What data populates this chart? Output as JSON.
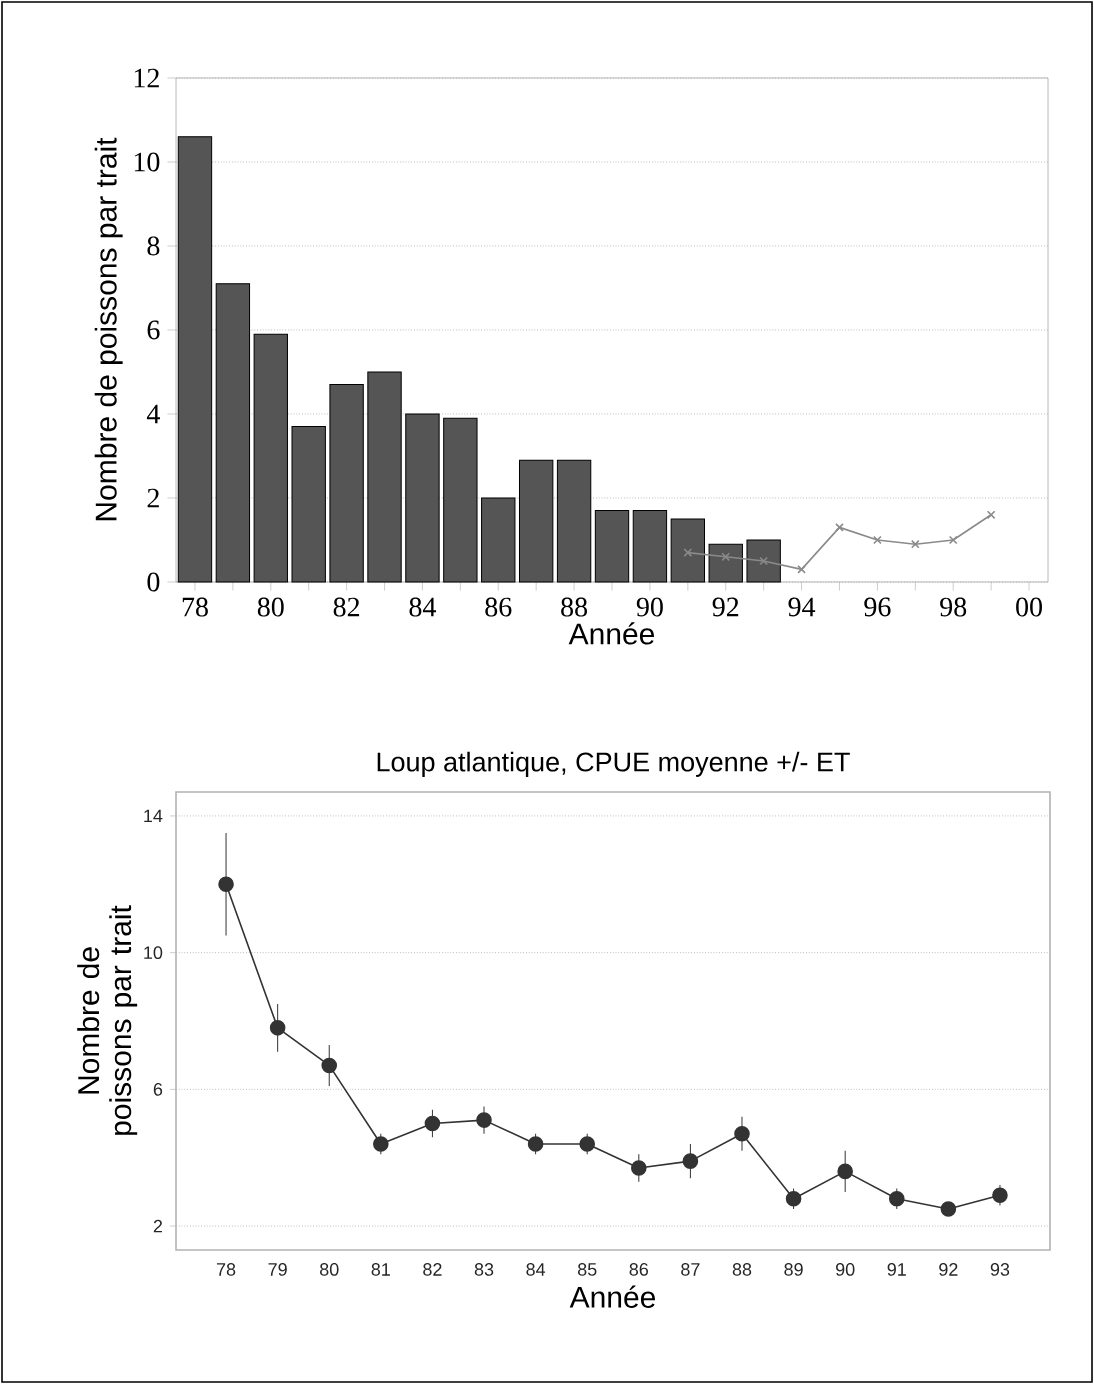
{
  "chart_data": [
    {
      "type": "bar",
      "xlabel": "Année",
      "ylabel": "Nombre de poissons par trait",
      "xlim": [
        1977.5,
        2000.5
      ],
      "ylim": [
        0,
        12
      ],
      "yticks": [
        0,
        2,
        4,
        6,
        8,
        10,
        12
      ],
      "grid": "y",
      "xticks": [
        {
          "value": 1978,
          "label": "78"
        },
        {
          "value": 1979,
          "label": null
        },
        {
          "value": 1980,
          "label": "80"
        },
        {
          "value": 1981,
          "label": null
        },
        {
          "value": 1982,
          "label": "82"
        },
        {
          "value": 1983,
          "label": null
        },
        {
          "value": 1984,
          "label": "84"
        },
        {
          "value": 1985,
          "label": null
        },
        {
          "value": 1986,
          "label": "86"
        },
        {
          "value": 1987,
          "label": null
        },
        {
          "value": 1988,
          "label": "88"
        },
        {
          "value": 1989,
          "label": null
        },
        {
          "value": 1990,
          "label": "90"
        },
        {
          "value": 1991,
          "label": null
        },
        {
          "value": 1992,
          "label": "92"
        },
        {
          "value": 1993,
          "label": null
        },
        {
          "value": 1994,
          "label": "94"
        },
        {
          "value": 1995,
          "label": null
        },
        {
          "value": 1996,
          "label": "96"
        },
        {
          "value": 1997,
          "label": null
        },
        {
          "value": 1998,
          "label": "98"
        },
        {
          "value": 1999,
          "label": null
        },
        {
          "value": 2000,
          "label": "00"
        }
      ],
      "series": [
        {
          "type": "bar",
          "color": "#555555",
          "x": [
            1978,
            1979,
            1980,
            1981,
            1982,
            1983,
            1984,
            1985,
            1986,
            1987,
            1988,
            1989,
            1990,
            1991,
            1992,
            1993
          ],
          "values": [
            10.6,
            7.1,
            5.9,
            3.7,
            4.7,
            5.0,
            4.0,
            3.9,
            2.0,
            2.9,
            2.9,
            1.7,
            1.7,
            1.5,
            0.9,
            1.0
          ]
        },
        {
          "type": "line",
          "color": "#8a8a8a",
          "marker": "cross",
          "x": [
            1991,
            1992,
            1993,
            1994,
            1995,
            1996,
            1997,
            1998,
            1999
          ],
          "values": [
            0.7,
            0.6,
            0.5,
            0.3,
            1.3,
            1.0,
            0.9,
            1.0,
            1.6
          ]
        }
      ]
    },
    {
      "type": "line",
      "title": "Loup atlantique, CPUE moyenne +/- ET",
      "xlabel": "Année",
      "ylabel": "Nombre de poissons par trait",
      "ylim": [
        1.3,
        14.7
      ],
      "yticks": [
        2,
        6,
        10,
        14
      ],
      "grid": "y",
      "marker": "circle",
      "color": "#333333",
      "categories": [
        "78",
        "79",
        "80",
        "81",
        "82",
        "83",
        "84",
        "85",
        "86",
        "87",
        "88",
        "89",
        "90",
        "91",
        "92",
        "93"
      ],
      "values": [
        12.0,
        7.8,
        6.7,
        4.4,
        5.0,
        5.1,
        4.4,
        4.4,
        3.7,
        3.9,
        4.7,
        2.8,
        3.6,
        2.8,
        2.5,
        2.9
      ],
      "errors": [
        1.5,
        0.7,
        0.6,
        0.3,
        0.4,
        0.4,
        0.3,
        0.3,
        0.4,
        0.5,
        0.5,
        0.3,
        0.6,
        0.3,
        0.2,
        0.3
      ]
    }
  ]
}
